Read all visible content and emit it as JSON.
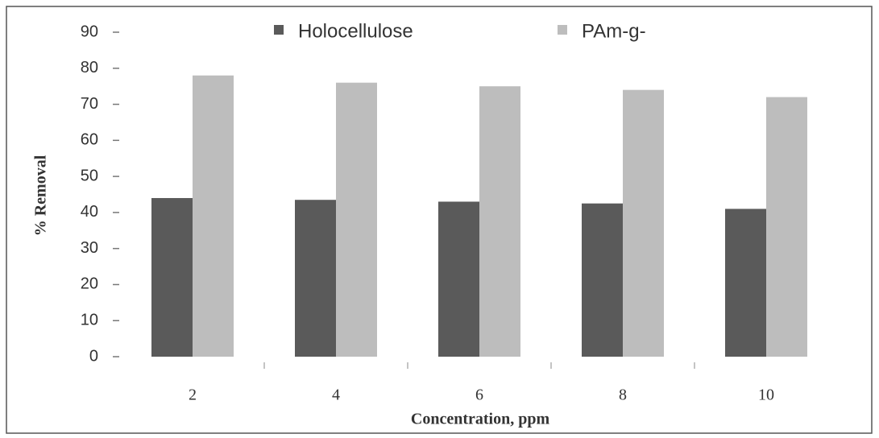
{
  "chart_data": {
    "type": "bar",
    "xlabel": "Concentration, ppm",
    "ylabel": "% Removal",
    "categories": [
      "2",
      "4",
      "6",
      "8",
      "10"
    ],
    "series": [
      {
        "name": "Holocellulose",
        "color": "#5a5a5a",
        "values": [
          44,
          43.5,
          43,
          42.5,
          41
        ]
      },
      {
        "name": "PAm-g-",
        "color": "#bdbdbd",
        "values": [
          78,
          76,
          75,
          74,
          72
        ]
      }
    ],
    "ylim": [
      0,
      90
    ],
    "yticks": [
      0,
      10,
      20,
      30,
      40,
      50,
      60,
      70,
      80,
      90
    ],
    "grid": false,
    "legend": "top"
  }
}
